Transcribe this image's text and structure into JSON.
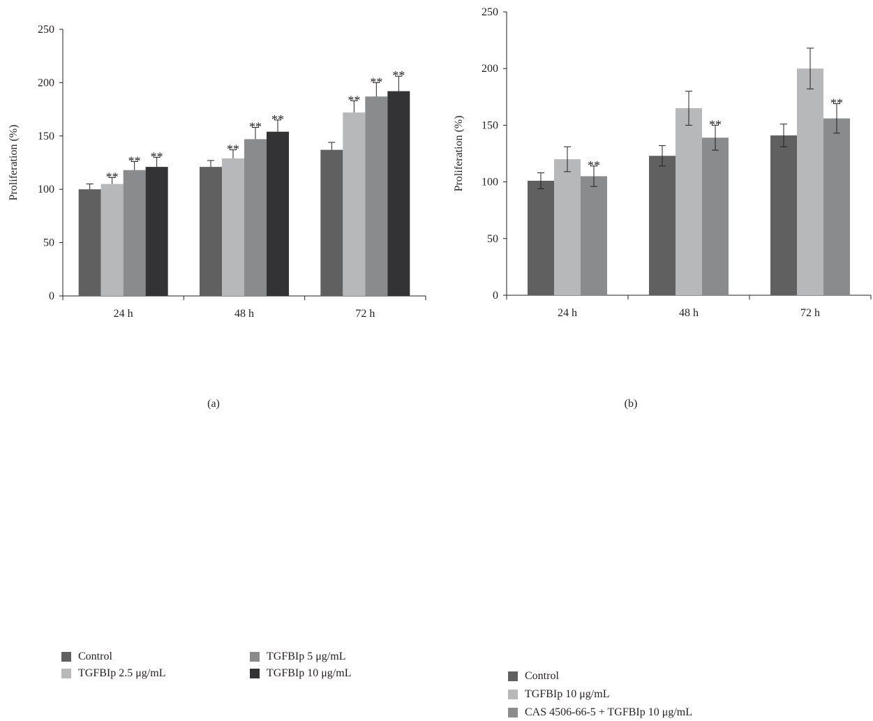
{
  "chart_data": [
    {
      "type": "bar",
      "panel_label": "(a)",
      "ylabel": "Proliferation (%)",
      "xlabel": "",
      "ylim": [
        0,
        250
      ],
      "yticks": [
        0,
        50,
        100,
        150,
        200,
        250
      ],
      "categories": [
        "24 h",
        "48 h",
        "72 h"
      ],
      "series": [
        {
          "name": "Control",
          "color": "#606061",
          "values": [
            100,
            121,
            137
          ],
          "errors": [
            5,
            6,
            7
          ],
          "marks": [
            "",
            "",
            ""
          ]
        },
        {
          "name": "TGFBIp 2.5 μg/mL",
          "color": "#b7b8ba",
          "values": [
            105,
            129,
            172
          ],
          "errors": [
            6,
            8,
            11
          ],
          "marks": [
            "**",
            "**",
            "**"
          ]
        },
        {
          "name": "TGFBIp 5 μg/mL",
          "color": "#8a8b8d",
          "values": [
            118,
            147,
            187
          ],
          "errors": [
            8,
            11,
            13
          ],
          "marks": [
            "**",
            "**",
            "**"
          ]
        },
        {
          "name": "TGFBIp 10 μg/mL",
          "color": "#333234",
          "values": [
            121,
            154,
            192
          ],
          "errors": [
            9,
            11,
            14
          ],
          "marks": [
            "**",
            "**",
            "**"
          ]
        }
      ],
      "legend_position": "bottom"
    },
    {
      "type": "bar",
      "panel_label": "(b)",
      "ylabel": "Proliferation (%)",
      "xlabel": "",
      "ylim": [
        0,
        250
      ],
      "yticks": [
        0,
        50,
        100,
        150,
        200,
        250
      ],
      "categories": [
        "24 h",
        "48 h",
        "72 h"
      ],
      "series": [
        {
          "name": "Control",
          "color": "#606061",
          "values": [
            101,
            123,
            141
          ],
          "errors": [
            7,
            9,
            10
          ],
          "marks": [
            "",
            "",
            ""
          ]
        },
        {
          "name": "TGFBIp 10 μg/mL",
          "color": "#b7b8ba",
          "values": [
            120,
            165,
            200
          ],
          "errors": [
            11,
            15,
            18
          ],
          "marks": [
            "",
            "",
            ""
          ]
        },
        {
          "name": "CAS 4506-66-5 + TGFBIp 10 μg/mL",
          "color": "#8a8b8d",
          "values": [
            105,
            139,
            156
          ],
          "errors": [
            9,
            11,
            13
          ],
          "marks": [
            "**",
            "**",
            "**"
          ]
        }
      ],
      "legend_position": "bottom"
    }
  ]
}
